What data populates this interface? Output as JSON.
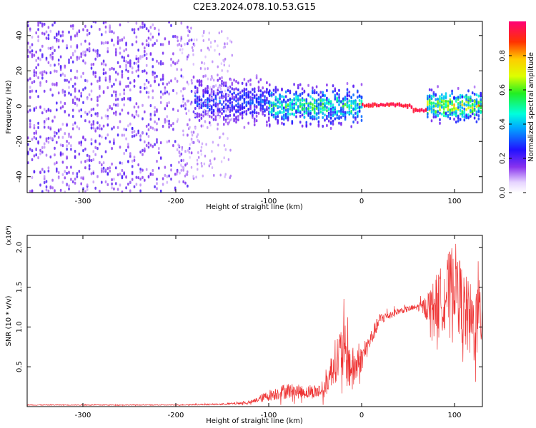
{
  "title": "C2E3.2024.078.10.53.G15",
  "chart_data": [
    {
      "type": "heatmap",
      "xlabel": "Height of straight line (km)",
      "ylabel": "Frequency (Hz)",
      "xlim": [
        -360,
        130
      ],
      "ylim": [
        -49,
        48
      ],
      "x_ticks": [
        -300,
        -200,
        -100,
        0,
        100
      ],
      "y_ticks": [
        -40,
        -20,
        0,
        20,
        40
      ],
      "colorbar": {
        "label": "Normalized spectral amplitude",
        "range": [
          0.0,
          1.0
        ],
        "ticks": [
          0.0,
          0.2,
          0.4,
          0.6,
          0.8
        ]
      },
      "regions": [
        {
          "x": [
            -360,
            -180
          ],
          "freq_spread": [
            -49,
            48
          ],
          "amplitude": 0.1
        },
        {
          "x": [
            -180,
            -100
          ],
          "freq_spread": [
            -15,
            20
          ],
          "amplitude": 0.15
        },
        {
          "x": [
            -100,
            0
          ],
          "freq_spread": [
            -15,
            15
          ],
          "amplitude": 0.3
        },
        {
          "x": [
            0,
            70
          ],
          "freq_spread": [
            -3,
            2
          ],
          "amplitude": 0.9
        },
        {
          "x": [
            70,
            130
          ],
          "freq_spread": [
            -12,
            12
          ],
          "amplitude": 0.4
        }
      ]
    },
    {
      "type": "line",
      "xlabel": "Height of straight line (km)",
      "ylabel": "SNR (10 * v/v)",
      "y_multiplier": "(x10⁴)",
      "xlim": [
        -360,
        130
      ],
      "ylim": [
        0,
        2.15
      ],
      "x_ticks": [
        -300,
        -200,
        -100,
        0,
        100
      ],
      "y_ticks": [
        0.5,
        1.0,
        1.5,
        2.0
      ],
      "color": "#ee3333",
      "series": [
        {
          "x": [
            -360,
            -300,
            -200,
            -150,
            -120,
            -100,
            -80,
            -60,
            -40,
            -30,
            -20,
            -10,
            0,
            20,
            40,
            60,
            70,
            80,
            90,
            100,
            110,
            120,
            130
          ],
          "y": [
            0.02,
            0.02,
            0.02,
            0.03,
            0.05,
            0.14,
            0.2,
            0.18,
            0.2,
            0.55,
            0.7,
            0.45,
            0.6,
            1.1,
            1.2,
            1.25,
            1.25,
            1.3,
            1.4,
            1.6,
            1.2,
            1.0,
            1.2
          ],
          "noise": [
            0.005,
            0.005,
            0.005,
            0.01,
            0.02,
            0.07,
            0.1,
            0.08,
            0.1,
            0.25,
            0.4,
            0.3,
            0.15,
            0.08,
            0.04,
            0.04,
            0.15,
            0.35,
            0.45,
            0.5,
            0.5,
            0.5,
            0.45
          ]
        }
      ]
    }
  ]
}
